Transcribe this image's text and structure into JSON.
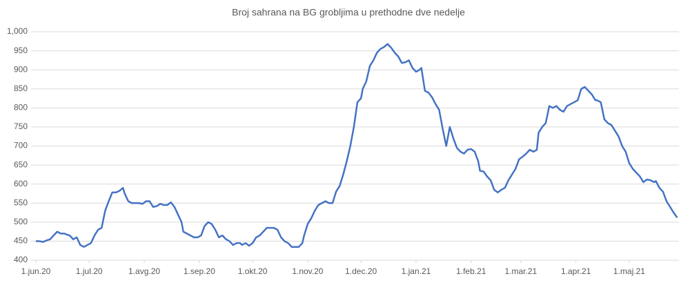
{
  "chart_data": {
    "type": "line",
    "title": "Broj sahrana na BG grobljima u prethodne dve nedelje",
    "x": [
      0,
      2,
      4,
      6,
      8,
      10,
      12,
      14,
      16,
      17,
      19,
      21,
      23,
      25,
      27,
      29,
      31,
      33,
      35,
      37,
      39,
      41,
      43,
      45,
      47,
      49,
      50,
      52,
      54,
      56,
      58,
      60,
      62,
      64,
      66,
      68,
      70,
      72,
      74,
      76,
      78,
      80,
      82,
      83,
      85,
      87,
      89,
      91,
      93,
      95,
      97,
      99,
      101,
      103,
      105,
      107,
      109,
      111,
      113,
      115,
      116,
      118,
      120,
      122,
      124,
      126,
      128,
      130,
      132,
      134,
      136,
      138,
      140,
      142,
      144,
      146,
      148,
      150,
      151,
      153,
      155,
      157,
      159,
      161,
      163,
      165,
      167,
      169,
      171,
      173,
      175,
      177,
      179,
      181,
      183,
      184,
      186,
      188,
      190,
      192,
      194,
      196,
      198,
      200,
      202,
      204,
      206,
      208,
      210,
      212,
      214,
      216,
      217,
      219,
      221,
      223,
      225,
      227,
      229,
      231,
      233,
      235,
      237,
      239,
      241,
      243,
      245,
      247,
      249,
      250,
      252,
      254,
      256,
      258,
      260,
      262,
      264,
      266,
      268,
      270,
      272,
      274,
      276,
      278,
      280,
      282,
      283,
      285,
      287,
      289,
      291,
      293,
      295,
      297,
      299,
      301,
      303,
      305,
      307,
      309,
      311,
      313,
      315,
      316,
      318,
      320,
      322,
      324,
      326,
      328,
      330,
      332,
      334,
      336,
      338,
      340,
      342,
      344,
      346,
      348,
      349,
      351,
      353,
      355,
      357,
      359,
      361
    ],
    "series": [
      {
        "name": "Broj sahrana",
        "color": "#4472c4",
        "values": [
          450,
          450,
          448,
          452,
          455,
          465,
          475,
          470,
          470,
          468,
          465,
          455,
          460,
          440,
          435,
          440,
          445,
          465,
          480,
          485,
          530,
          555,
          578,
          578,
          582,
          590,
          575,
          555,
          550,
          550,
          550,
          548,
          555,
          555,
          540,
          542,
          548,
          545,
          545,
          552,
          540,
          520,
          500,
          475,
          470,
          465,
          460,
          460,
          465,
          490,
          500,
          495,
          480,
          460,
          465,
          455,
          450,
          440,
          445,
          445,
          440,
          445,
          438,
          445,
          460,
          465,
          475,
          485,
          485,
          485,
          480,
          460,
          450,
          445,
          435,
          435,
          435,
          445,
          465,
          495,
          510,
          530,
          545,
          550,
          555,
          550,
          550,
          580,
          595,
          625,
          660,
          700,
          750,
          815,
          825,
          850,
          870,
          910,
          925,
          945,
          955,
          960,
          968,
          958,
          945,
          935,
          918,
          920,
          925,
          905,
          895,
          900,
          905,
          845,
          840,
          828,
          810,
          795,
          745,
          700,
          750,
          720,
          695,
          685,
          680,
          690,
          692,
          685,
          660,
          635,
          633,
          620,
          610,
          585,
          578,
          585,
          590,
          610,
          625,
          640,
          665,
          672,
          680,
          690,
          685,
          690,
          735,
          750,
          760,
          805,
          800,
          805,
          795,
          790,
          805,
          810,
          815,
          820,
          850,
          855,
          845,
          835,
          820,
          820,
          815,
          770,
          760,
          755,
          740,
          725,
          700,
          685,
          655,
          640,
          630,
          620,
          605,
          612,
          610,
          605,
          608,
          590,
          580,
          555,
          540,
          525,
          512
        ]
      }
    ],
    "xlim": [
      0,
      362
    ],
    "xticks": [
      {
        "value": 0,
        "label": "1.jun.20"
      },
      {
        "value": 30,
        "label": "1.jul.20"
      },
      {
        "value": 61,
        "label": "1.avg.20"
      },
      {
        "value": 92,
        "label": "1.sep.20"
      },
      {
        "value": 122,
        "label": "1.okt.20"
      },
      {
        "value": 153,
        "label": "1.nov.20"
      },
      {
        "value": 183,
        "label": "1.dec.20"
      },
      {
        "value": 214,
        "label": "1.jan.21"
      },
      {
        "value": 245,
        "label": "1.feb.21"
      },
      {
        "value": 273,
        "label": "1.mar.21"
      },
      {
        "value": 304,
        "label": "1.apr.21"
      },
      {
        "value": 334,
        "label": "1.maj.21"
      }
    ],
    "ylim": [
      400,
      1000
    ],
    "yticks": [
      400,
      450,
      500,
      550,
      600,
      650,
      700,
      750,
      800,
      850,
      900,
      950,
      {
        "value": 1000,
        "label": "1,000"
      }
    ],
    "grid": true
  }
}
